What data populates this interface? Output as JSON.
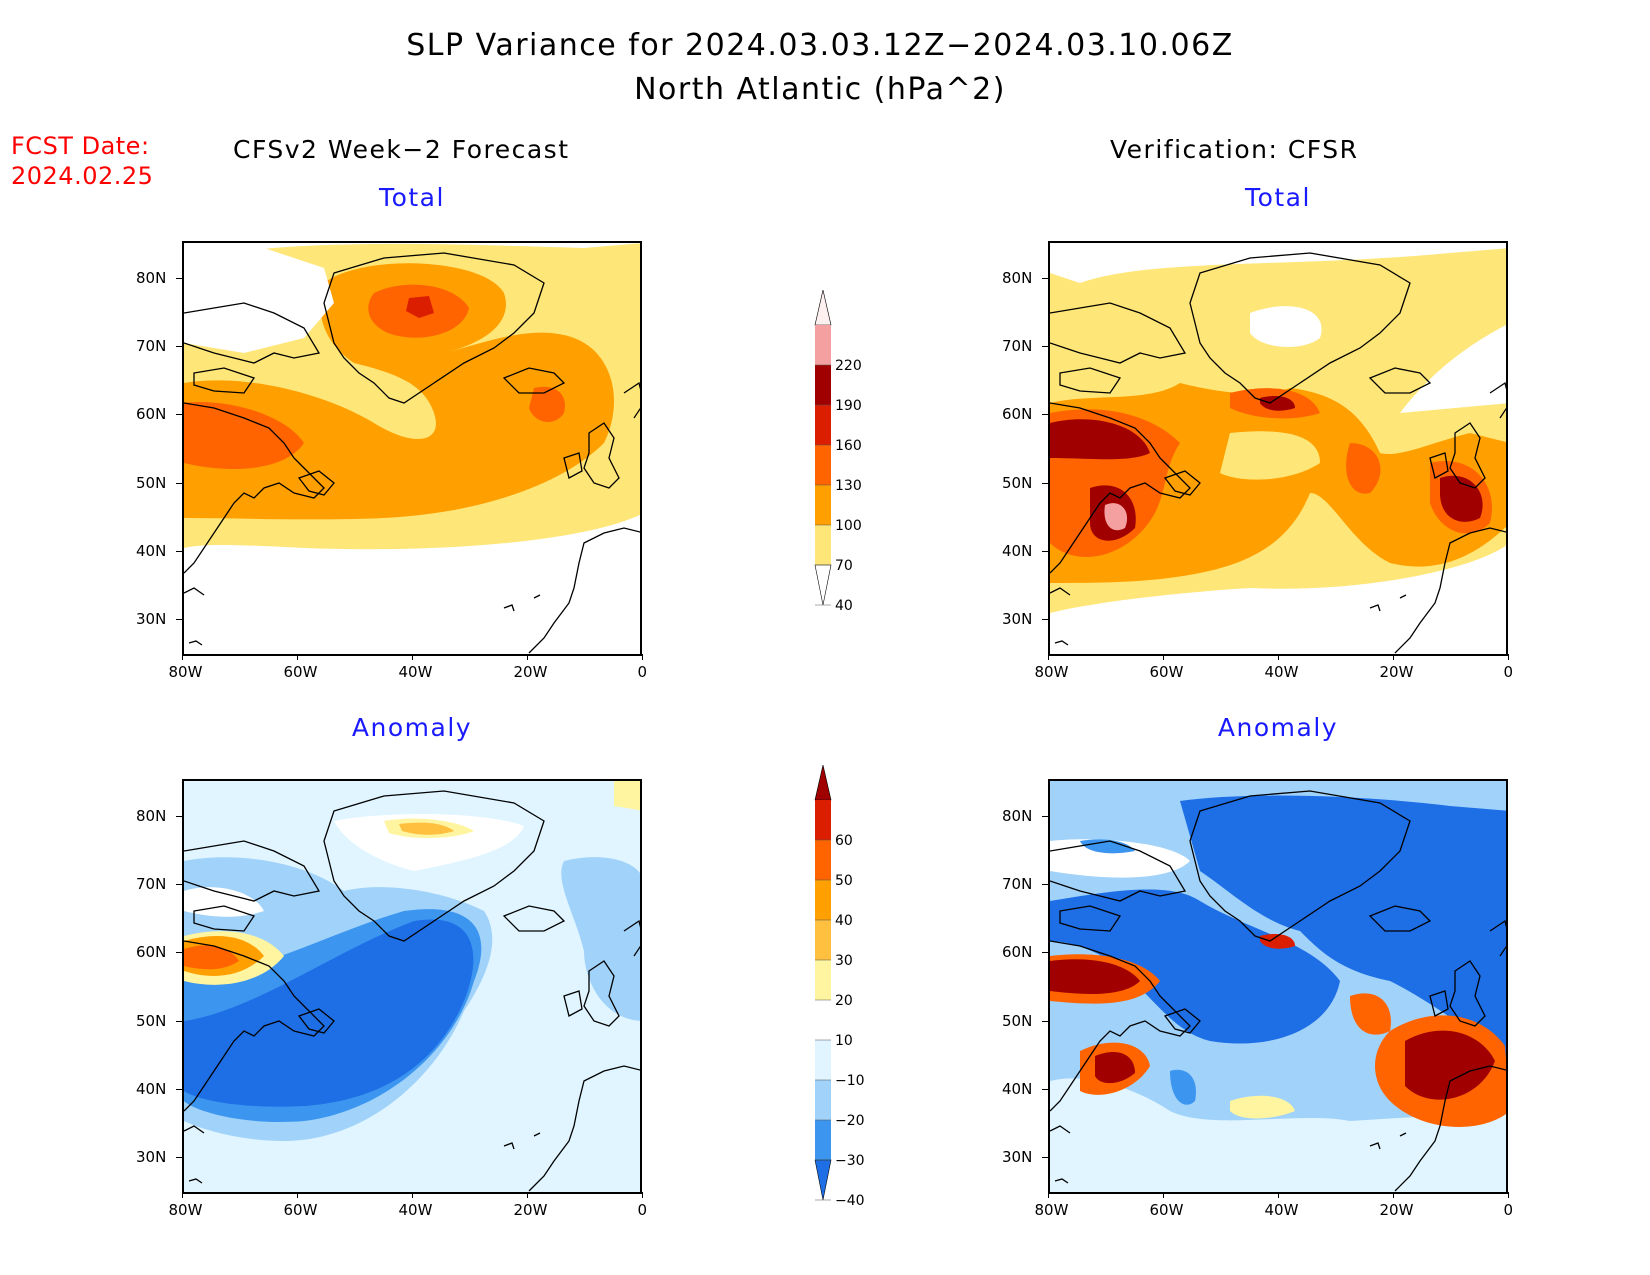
{
  "header": {
    "title": "SLP Variance for 2024.03.03.12Z−2024.03.10.06Z",
    "subtitle": "North Atlantic (hPa^2)",
    "fcst_label": "FCST Date:",
    "fcst_value": "2024.02.25"
  },
  "columns": {
    "left": "CFSv2 Week−2 Forecast",
    "right": "Verification: CFSR"
  },
  "panels": {
    "total": "Total",
    "anomaly": "Anomaly"
  },
  "axes": {
    "lat_ticks": [
      "80N",
      "70N",
      "60N",
      "50N",
      "40N",
      "30N"
    ],
    "lon_ticks": [
      "80W",
      "60W",
      "40W",
      "20W",
      "0"
    ]
  },
  "colorbars": {
    "total": {
      "labels": [
        "220",
        "190",
        "160",
        "130",
        "100",
        "70",
        "40"
      ],
      "colors": [
        "#fff0f0",
        "#f4a0a0",
        "#a00000",
        "#dc1e00",
        "#ff6400",
        "#ffa000",
        "#ffe678",
        "#ffffff"
      ]
    },
    "anomaly": {
      "labels": [
        "60",
        "50",
        "40",
        "30",
        "20",
        "10",
        "−10",
        "−20",
        "−30",
        "−40"
      ],
      "colors": [
        "#a00000",
        "#dc1e00",
        "#ff6400",
        "#ffa000",
        "#ffc040",
        "#fff5a0",
        "#ffffff",
        "#e0f5ff",
        "#a0d2fa",
        "#3c96f0",
        "#1e6ee6"
      ]
    }
  },
  "palette": {
    "land_outline": "#000000",
    "label_blue": "#1a1aff",
    "label_red": "#ff0000"
  }
}
